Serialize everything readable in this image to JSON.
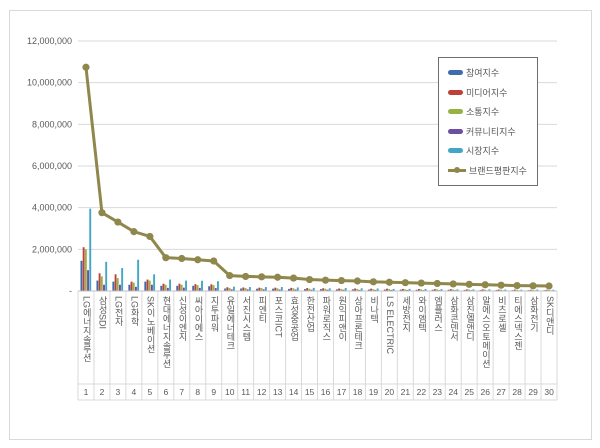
{
  "chart_data": {
    "type": "bar",
    "subtype": "grouped-bars-with-line-overlay",
    "title": "",
    "categories": [
      "LG에너지솔루션",
      "삼성SDI",
      "LG전자",
      "LG화학",
      "SK이노베이션",
      "현대에너지솔루션",
      "신성이엔지",
      "씨아이에스",
      "지투파워",
      "유일에너테크",
      "서진시스템",
      "피엔티",
      "포스코ICT",
      "효성중공업",
      "한전산업",
      "파워로직스",
      "원익피앤이",
      "상아프론테크",
      "비나텍",
      "LS ELECTRIC",
      "세방전지",
      "와이엠텍",
      "엠플러스",
      "삼화콘덴서",
      "삼진엘앤디",
      "알에스오토메이션",
      "비츠로셀",
      "티에스넥스젠",
      "삼화전기",
      "SK디앤디"
    ],
    "ranks": [
      "1",
      "2",
      "3",
      "4",
      "5",
      "6",
      "7",
      "8",
      "9",
      "10",
      "11",
      "12",
      "13",
      "14",
      "15",
      "16",
      "17",
      "18",
      "19",
      "20",
      "21",
      "22",
      "23",
      "24",
      "25",
      "26",
      "27",
      "28",
      "29",
      "30"
    ],
    "series": [
      {
        "name": "참여지수",
        "key": "participation-index",
        "chart": "bar",
        "color": "#3F6CAC",
        "values": [
          1450000,
          500000,
          450000,
          300000,
          450000,
          250000,
          250000,
          250000,
          230000,
          120000,
          120000,
          110000,
          110000,
          100000,
          90000,
          90000,
          80000,
          80000,
          70000,
          70000,
          70000,
          60000,
          60000,
          60000,
          50000,
          50000,
          50000,
          40000,
          40000,
          40000
        ]
      },
      {
        "name": "미디어지수",
        "key": "media-index",
        "chart": "bar",
        "color": "#BE4038",
        "values": [
          2100000,
          850000,
          800000,
          450000,
          550000,
          350000,
          350000,
          330000,
          320000,
          180000,
          170000,
          160000,
          160000,
          150000,
          140000,
          130000,
          120000,
          120000,
          110000,
          110000,
          100000,
          100000,
          90000,
          90000,
          80000,
          80000,
          70000,
          70000,
          60000,
          60000
        ]
      },
      {
        "name": "소통지수",
        "key": "communication-index",
        "chart": "bar",
        "color": "#97B23F",
        "values": [
          2000000,
          700000,
          620000,
          400000,
          500000,
          300000,
          300000,
          280000,
          280000,
          150000,
          140000,
          140000,
          130000,
          130000,
          110000,
          110000,
          100000,
          100000,
          90000,
          90000,
          80000,
          80000,
          80000,
          70000,
          70000,
          60000,
          60000,
          60000,
          50000,
          50000
        ]
      },
      {
        "name": "커뮤니티지수",
        "key": "community-index",
        "chart": "bar",
        "color": "#6C4FA0",
        "values": [
          1000000,
          300000,
          300000,
          200000,
          300000,
          150000,
          160000,
          150000,
          140000,
          80000,
          80000,
          80000,
          70000,
          70000,
          60000,
          60000,
          60000,
          50000,
          50000,
          50000,
          50000,
          40000,
          40000,
          40000,
          40000,
          30000,
          30000,
          30000,
          30000,
          30000
        ]
      },
      {
        "name": "시장지수",
        "key": "market-index",
        "chart": "bar",
        "color": "#42A6C6",
        "values": [
          3950000,
          1400000,
          1100000,
          1500000,
          800000,
          550000,
          500000,
          490000,
          470000,
          210000,
          190000,
          190000,
          190000,
          170000,
          150000,
          130000,
          140000,
          130000,
          120000,
          100000,
          100000,
          100000,
          90000,
          80000,
          80000,
          80000,
          70000,
          60000,
          70000,
          60000
        ]
      },
      {
        "name": "브랜드평판지수",
        "key": "brand-reputation-index",
        "chart": "line",
        "color": "#8F874C",
        "values": [
          10740000,
          3760000,
          3310000,
          2850000,
          2620000,
          1600000,
          1560000,
          1500000,
          1440000,
          740000,
          700000,
          680000,
          660000,
          620000,
          550000,
          520000,
          500000,
          480000,
          440000,
          420000,
          400000,
          380000,
          360000,
          340000,
          320000,
          300000,
          280000,
          260000,
          250000,
          240000
        ]
      }
    ],
    "ylim": [
      0,
      12000000
    ],
    "y_tick_step": 2000000,
    "y_tick_labels": [
      "12,000,000",
      "10,000,000",
      "8,000,000",
      "6,000,000",
      "4,000,000",
      "2,000,000",
      "-"
    ],
    "grid": true,
    "legend_position": "inside-upper-right",
    "colors": {
      "grid_line": "#D9D9D9",
      "axis_line": "#BFBFBF",
      "label_text": "#595959",
      "legend_border": "#6E6E6E",
      "frame_border": "#D9D9D9"
    }
  }
}
